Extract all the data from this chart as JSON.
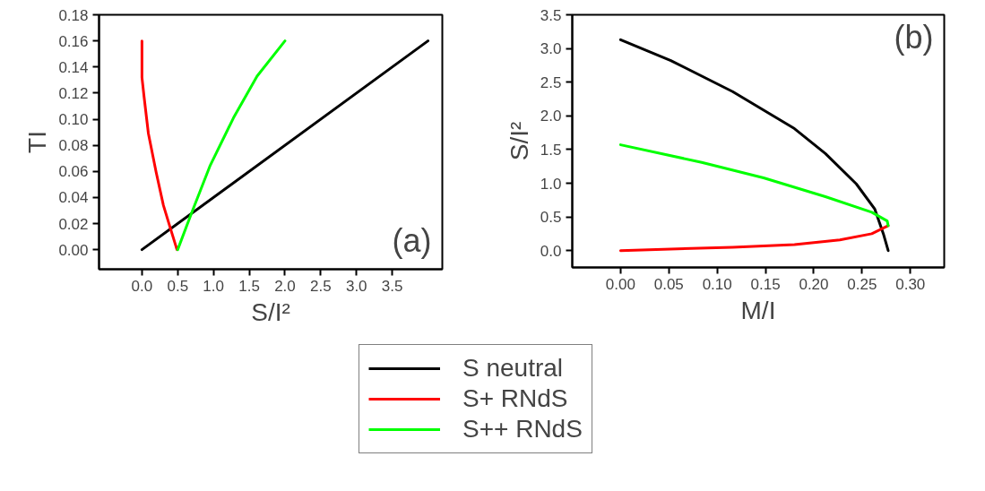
{
  "chart_data": [
    {
      "type": "line",
      "xlabel": "S/I²",
      "ylabel": "TI",
      "annotations": [
        "(a)"
      ],
      "xlim": [
        -0.6,
        4.2
      ],
      "ylim": [
        -0.015,
        0.18
      ],
      "xticks": [
        {
          "value": 0,
          "label": "0.0"
        },
        {
          "value": 0.5,
          "label": "0.5"
        },
        {
          "value": 1,
          "label": "1.0"
        },
        {
          "value": 1.5,
          "label": "1.5"
        },
        {
          "value": 2,
          "label": "2.0"
        },
        {
          "value": 2.5,
          "label": "2.5"
        },
        {
          "value": 3,
          "label": "3.0"
        },
        {
          "value": 3.5,
          "label": "3.5"
        }
      ],
      "yticks": [
        {
          "value": 0,
          "label": "0.00"
        },
        {
          "value": 0.02,
          "label": "0.02"
        },
        {
          "value": 0.04,
          "label": "0.04"
        },
        {
          "value": 0.06,
          "label": "0.06"
        },
        {
          "value": 0.08,
          "label": "0.08"
        },
        {
          "value": 0.1,
          "label": "0.10"
        },
        {
          "value": 0.12,
          "label": "0.12"
        },
        {
          "value": 0.14,
          "label": "0.14"
        },
        {
          "value": 0.16,
          "label": "0.16"
        },
        {
          "value": 0.18,
          "label": "0.18"
        }
      ],
      "grid": false,
      "line_style": "solid",
      "series": [
        {
          "color": "#000000",
          "x": [
            0,
            4.0
          ],
          "values": [
            0,
            0.16
          ]
        },
        {
          "color": "#ff0000",
          "x": [
            0,
            0,
            0.03,
            0.09,
            0.2,
            0.3,
            0.4,
            0.49
          ],
          "values": [
            0.16,
            0.132,
            0.117,
            0.089,
            0.059,
            0.034,
            0.016,
            0
          ]
        },
        {
          "color": "#00ff00",
          "x": [
            0.5,
            0.7,
            0.95,
            1.28,
            1.61,
            2.0
          ],
          "values": [
            0,
            0.029,
            0.064,
            0.101,
            0.133,
            0.16
          ]
        }
      ]
    },
    {
      "type": "line",
      "xlabel": "M/I",
      "ylabel": "S/I²",
      "annotations": [
        "(b)"
      ],
      "xlim": [
        -0.05,
        0.335
      ],
      "ylim": [
        -0.25,
        3.5
      ],
      "xticks": [
        {
          "value": 0,
          "label": "0.00"
        },
        {
          "value": 0.05,
          "label": "0.05"
        },
        {
          "value": 0.1,
          "label": "0.10"
        },
        {
          "value": 0.15,
          "label": "0.15"
        },
        {
          "value": 0.2,
          "label": "0.20"
        },
        {
          "value": 0.25,
          "label": "0.25"
        },
        {
          "value": 0.3,
          "label": "0.30"
        }
      ],
      "yticks": [
        {
          "value": 0,
          "label": "0.0"
        },
        {
          "value": 0.5,
          "label": "0.5"
        },
        {
          "value": 1,
          "label": "1.0"
        },
        {
          "value": 1.5,
          "label": "1.5"
        },
        {
          "value": 2,
          "label": "2.0"
        },
        {
          "value": 2.5,
          "label": "2.5"
        },
        {
          "value": 3,
          "label": "3.0"
        },
        {
          "value": 3.5,
          "label": "3.5"
        }
      ],
      "grid": false,
      "legend": "bottom",
      "line_style": "solid",
      "series": [
        {
          "name": "S neutral",
          "color": "#000000",
          "x": [
            0,
            0.052,
            0.116,
            0.18,
            0.212,
            0.244,
            0.263,
            0.272,
            0.277
          ],
          "values": [
            3.13,
            2.82,
            2.36,
            1.81,
            1.44,
            0.99,
            0.62,
            0.25,
            0
          ]
        },
        {
          "name": "S+ RNdS",
          "color": "#ff0000",
          "x": [
            0,
            0.116,
            0.18,
            0.227,
            0.26,
            0.277
          ],
          "values": [
            0,
            0.05,
            0.09,
            0.16,
            0.25,
            0.37
          ]
        },
        {
          "name": "S++ RNdS",
          "color": "#00ff00",
          "x": [
            0,
            0.084,
            0.148,
            0.212,
            0.26,
            0.276,
            0.277
          ],
          "values": [
            1.57,
            1.31,
            1.08,
            0.8,
            0.57,
            0.44,
            0.37
          ]
        }
      ]
    }
  ]
}
